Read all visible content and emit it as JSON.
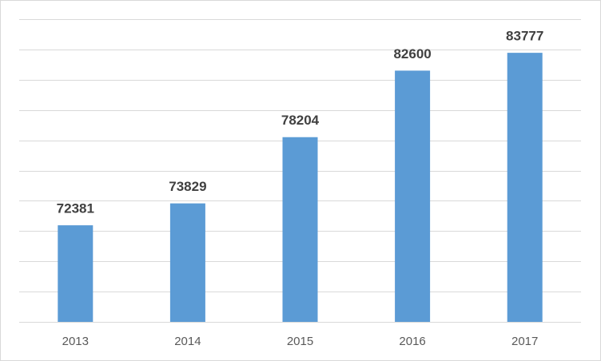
{
  "chart_data": {
    "type": "bar",
    "categories": [
      "2013",
      "2014",
      "2015",
      "2016",
      "2017"
    ],
    "values": [
      72381,
      73829,
      78204,
      82600,
      83777
    ],
    "color": "#5b9bd5",
    "ylim": [
      66000,
      86000
    ],
    "yticks": [
      66000,
      68000,
      70000,
      72000,
      74000,
      76000,
      78000,
      80000,
      82000,
      84000,
      86000
    ],
    "grid": true
  }
}
